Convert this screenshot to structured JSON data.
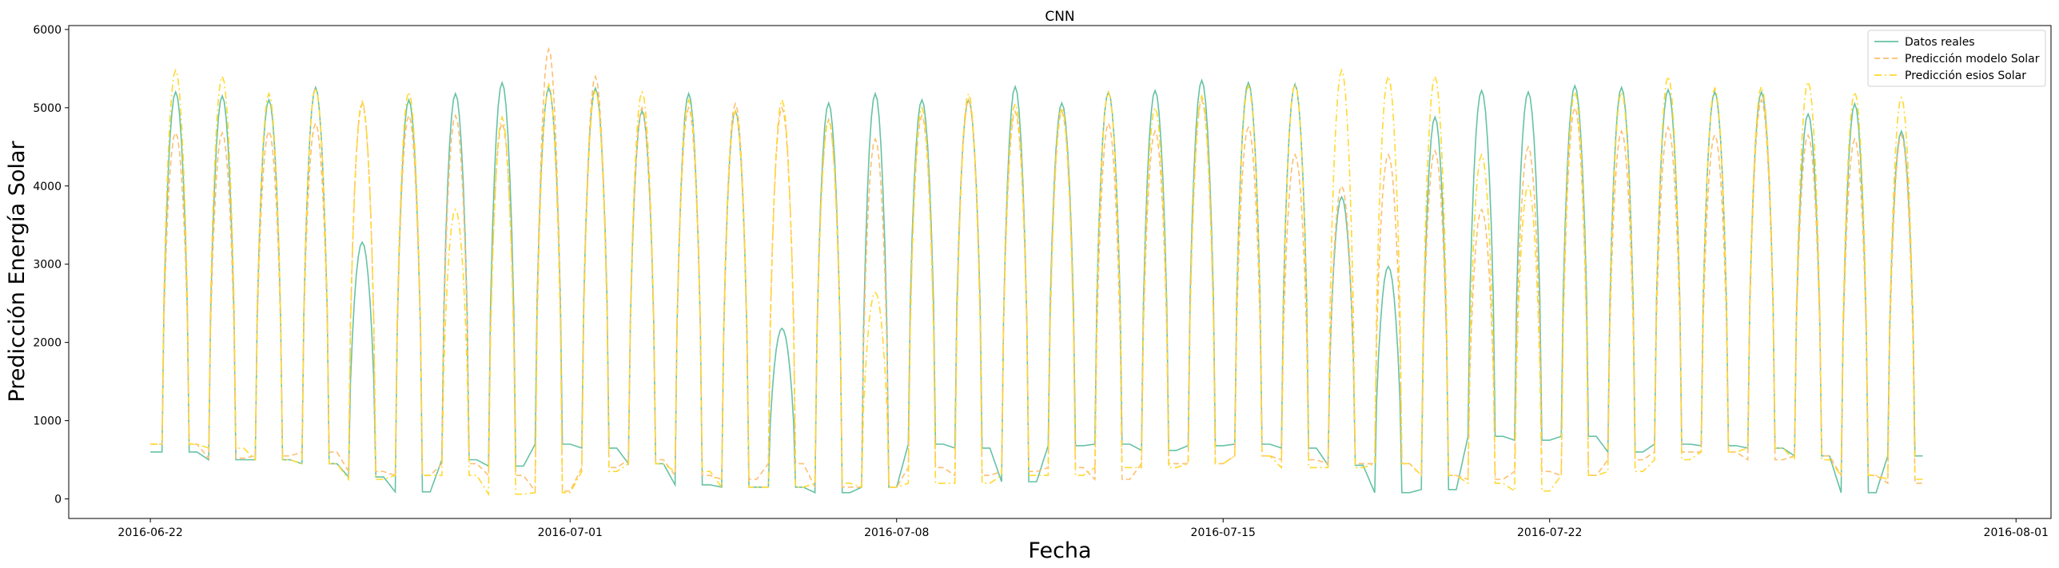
{
  "chart_data": {
    "type": "line",
    "title": "CNN",
    "xlabel": "Fecha",
    "ylabel": "Predicción Energía Solar",
    "xlim": [
      "2016-06-20T06:00",
      "2016-08-01T18:00"
    ],
    "ylim": [
      -250,
      6050
    ],
    "x_ticks": [
      "2016-06-22",
      "2016-07-01",
      "2016-07-08",
      "2016-07-15",
      "2016-07-22",
      "2016-08-01"
    ],
    "y_ticks": [
      0,
      1000,
      2000,
      3000,
      4000,
      5000,
      6000
    ],
    "legend_position": "top-right",
    "x_start": "2016-06-22T00:00",
    "x_end": "2016-07-30T00:00",
    "series": [
      {
        "name": "Datos reales",
        "color": "#66c2a5",
        "style": "solid",
        "daily_peaks": [
          5200,
          5150,
          5100,
          5260,
          3280,
          5100,
          5180,
          5320,
          5250,
          5250,
          4960,
          5180,
          4960,
          2180,
          5060,
          5180,
          5100,
          5100,
          5270,
          5060,
          5200,
          5220,
          5350,
          5320,
          5300,
          3860,
          2970,
          4880,
          5220,
          5200,
          5280,
          5260,
          5230,
          5200,
          5200,
          4920,
          5050,
          4700,
          5160
        ],
        "daily_troughs": [
          600,
          500,
          500,
          450,
          280,
          90,
          500,
          420,
          700,
          650,
          450,
          180,
          150,
          150,
          80,
          150,
          700,
          650,
          220,
          680,
          700,
          620,
          680,
          700,
          650,
          430,
          80,
          120,
          800,
          750,
          800,
          600,
          700,
          680,
          650,
          550,
          80,
          550,
          520
        ]
      },
      {
        "name": "Predicción modelo Solar",
        "color": "#fdbf6f",
        "style": "dashed",
        "daily_peaks": [
          4680,
          4680,
          4700,
          4800,
          5050,
          4900,
          4900,
          4800,
          5750,
          5400,
          5000,
          5000,
          5050,
          5000,
          4850,
          4600,
          4900,
          5100,
          4950,
          4950,
          4800,
          4700,
          5100,
          4750,
          4400,
          4000,
          4400,
          4450,
          3700,
          4500,
          5000,
          4700,
          4750,
          4650,
          5100,
          4650,
          4600,
          4650,
          4800
        ],
        "daily_troughs": [
          700,
          520,
          550,
          600,
          350,
          300,
          450,
          300,
          100,
          400,
          500,
          300,
          250,
          450,
          150,
          150,
          400,
          300,
          350,
          400,
          250,
          450,
          450,
          550,
          500,
          450,
          450,
          300,
          250,
          350,
          300,
          500,
          600,
          600,
          500,
          550,
          300,
          200,
          500
        ]
      },
      {
        "name": "Predicción esios Solar",
        "color": "#ffd92f",
        "style": "dashdot",
        "daily_peaks": [
          5480,
          5400,
          5180,
          5250,
          5080,
          5200,
          3700,
          4880,
          5300,
          5230,
          5200,
          5100,
          4960,
          5100,
          4840,
          2640,
          5000,
          5180,
          5050,
          5000,
          5200,
          5000,
          5150,
          5280,
          5300,
          5480,
          5400,
          5400,
          4400,
          4000,
          5200,
          5200,
          5400,
          5250,
          5270,
          5330,
          5200,
          5130,
          5000
        ],
        "daily_troughs": [
          700,
          650,
          500,
          450,
          250,
          300,
          300,
          60,
          80,
          350,
          450,
          350,
          150,
          150,
          200,
          150,
          200,
          200,
          300,
          300,
          400,
          400,
          450,
          550,
          400,
          400,
          450,
          300,
          200,
          100,
          300,
          350,
          500,
          600,
          650,
          500,
          300,
          250,
          150
        ]
      }
    ]
  }
}
